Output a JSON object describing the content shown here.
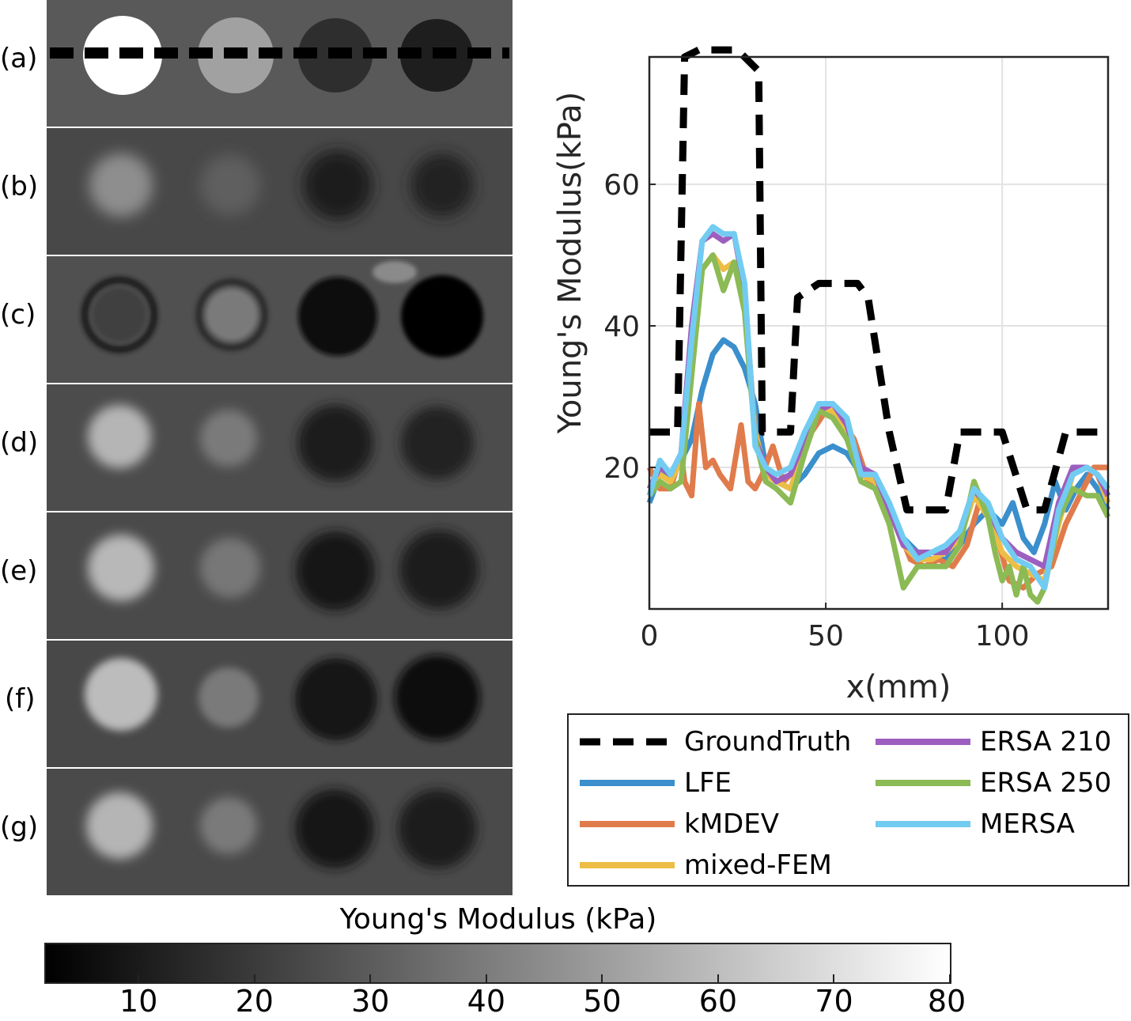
{
  "panels": {
    "labels": [
      "(a)",
      "(b)",
      "(c)",
      "(d)",
      "(e)",
      "(f)",
      "(g)"
    ],
    "inclusion_moduli_kpa": {
      "a": [
        80,
        46,
        14,
        9
      ],
      "b": [
        38,
        28,
        10,
        11
      ],
      "c": [
        22,
        33,
        5,
        5
      ],
      "d": [
        50,
        33,
        10,
        12
      ],
      "e": [
        50,
        33,
        9,
        11
      ],
      "f": [
        53,
        34,
        8,
        8
      ],
      "g": [
        53,
        33,
        8,
        10
      ]
    },
    "background_modulus_kpa": 25
  },
  "colorbar": {
    "title": "Young's Modulus (kPa)",
    "ticks": [
      "10",
      "20",
      "30",
      "40",
      "50",
      "60",
      "70",
      "80"
    ],
    "range": [
      2,
      80
    ],
    "colors": [
      "#000000",
      "#ffffff"
    ]
  },
  "chart_data": {
    "type": "line",
    "xlabel": "x(mm)",
    "ylabel": "Young's Modulus(kPa)",
    "xlim": [
      0,
      130
    ],
    "ylim": [
      0,
      78
    ],
    "xticks": [
      0,
      50,
      100
    ],
    "yticks": [
      20,
      40,
      60
    ],
    "grid": true,
    "legend_position": "below",
    "series": [
      {
        "name": "GroundTruth",
        "color": "#000000",
        "style": "dashed",
        "x": [
          0,
          8,
          10,
          14,
          25,
          31,
          32,
          38,
          40,
          42,
          48,
          59,
          62,
          68,
          73,
          84,
          88,
          92,
          100,
          107,
          112,
          118,
          130
        ],
        "y": [
          25,
          25,
          78,
          79,
          79,
          76,
          25,
          25,
          25,
          44,
          46,
          46,
          44,
          25,
          14,
          14,
          25,
          25,
          25,
          14,
          14,
          25,
          25
        ]
      },
      {
        "name": "LFE",
        "color": "#3a8fcc",
        "style": "solid",
        "x": [
          0,
          3,
          6,
          9,
          12,
          15,
          18,
          21,
          24,
          27,
          30,
          33,
          36,
          40,
          44,
          48,
          52,
          56,
          60,
          64,
          68,
          72,
          76,
          80,
          84,
          88,
          92,
          96,
          100,
          103,
          106,
          109,
          112,
          115,
          118,
          121,
          124,
          127,
          130
        ],
        "y": [
          15,
          19,
          19,
          21,
          24,
          31,
          36,
          38,
          37,
          34,
          29,
          20,
          18,
          17,
          19,
          22,
          23,
          22,
          19,
          18,
          14,
          10,
          8,
          7,
          7,
          9,
          12,
          14,
          12,
          15,
          10,
          8,
          12,
          18,
          14,
          17,
          19,
          17,
          14
        ]
      },
      {
        "name": "kMDEV",
        "color": "#e07b4b",
        "style": "solid",
        "x": [
          0,
          3,
          6,
          9,
          10,
          12,
          14,
          16,
          18,
          20,
          23,
          26,
          28,
          30,
          32,
          35,
          38,
          42,
          46,
          50,
          54,
          58,
          62,
          66,
          70,
          74,
          78,
          82,
          86,
          90,
          94,
          98,
          102,
          106,
          110,
          114,
          118,
          122,
          126,
          130
        ],
        "y": [
          20,
          17,
          17,
          22,
          18,
          16,
          29,
          20,
          21,
          19,
          17,
          26,
          18,
          17,
          19,
          23,
          18,
          20,
          25,
          28,
          27,
          24,
          18,
          17,
          12,
          7,
          6,
          7,
          6,
          9,
          16,
          11,
          4,
          3,
          5,
          6,
          12,
          16,
          20,
          20
        ]
      },
      {
        "name": "mixed-FEM",
        "color": "#edbe45",
        "style": "solid",
        "x": [
          0,
          3,
          6,
          9,
          12,
          15,
          18,
          21,
          24,
          27,
          30,
          33,
          36,
          40,
          44,
          48,
          52,
          56,
          60,
          64,
          68,
          72,
          76,
          80,
          84,
          88,
          92,
          96,
          100,
          104,
          108,
          112,
          116,
          120,
          124,
          127,
          130
        ],
        "y": [
          16,
          19,
          18,
          21,
          35,
          48,
          50,
          48,
          49,
          44,
          25,
          19,
          18,
          17,
          23,
          28,
          28,
          25,
          19,
          18,
          14,
          9,
          7,
          7,
          8,
          10,
          16,
          13,
          8,
          6,
          5,
          4,
          12,
          19,
          20,
          19,
          15
        ]
      },
      {
        "name": "ERSA 210",
        "color": "#9d5fbf",
        "style": "solid",
        "x": [
          0,
          3,
          6,
          9,
          12,
          15,
          18,
          21,
          24,
          27,
          30,
          33,
          36,
          40,
          44,
          48,
          52,
          56,
          60,
          64,
          68,
          72,
          76,
          80,
          84,
          88,
          92,
          96,
          100,
          104,
          108,
          112,
          116,
          120,
          124,
          127,
          130
        ],
        "y": [
          17,
          20,
          19,
          22,
          40,
          52,
          53,
          52,
          53,
          45,
          24,
          20,
          18,
          19,
          24,
          28,
          29,
          26,
          20,
          19,
          14,
          9,
          8,
          8,
          8,
          11,
          17,
          14,
          10,
          8,
          7,
          6,
          15,
          20,
          20,
          19,
          16
        ]
      },
      {
        "name": "ERSA 250",
        "color": "#8cba55",
        "style": "solid",
        "x": [
          0,
          3,
          6,
          9,
          12,
          15,
          18,
          21,
          24,
          27,
          30,
          33,
          36,
          40,
          44,
          48,
          52,
          56,
          60,
          64,
          68,
          72,
          76,
          80,
          84,
          88,
          92,
          96,
          98,
          100,
          102,
          104,
          106,
          108,
          110,
          112,
          116,
          120,
          124,
          127,
          130
        ],
        "y": [
          16,
          18,
          17,
          18,
          33,
          48,
          50,
          45,
          49,
          42,
          24,
          18,
          17,
          15,
          22,
          28,
          27,
          24,
          18,
          17,
          12,
          3,
          6,
          6,
          6,
          9,
          18,
          13,
          8,
          4,
          6,
          2,
          6,
          2,
          1,
          3,
          13,
          17,
          16,
          16,
          13
        ]
      },
      {
        "name": "MERSA",
        "color": "#72ccf2",
        "style": "solid",
        "x": [
          0,
          3,
          6,
          9,
          12,
          15,
          18,
          21,
          24,
          27,
          30,
          33,
          36,
          40,
          44,
          48,
          52,
          56,
          60,
          64,
          68,
          72,
          76,
          80,
          84,
          88,
          92,
          96,
          100,
          104,
          108,
          112,
          116,
          120,
          124,
          127,
          130
        ],
        "y": [
          16,
          21,
          19,
          22,
          38,
          52,
          54,
          53,
          53,
          46,
          23,
          20,
          19,
          20,
          25,
          29,
          29,
          27,
          19,
          19,
          15,
          10,
          7,
          8,
          9,
          11,
          17,
          15,
          10,
          7,
          6,
          3,
          14,
          19,
          20,
          19,
          17
        ]
      }
    ]
  }
}
